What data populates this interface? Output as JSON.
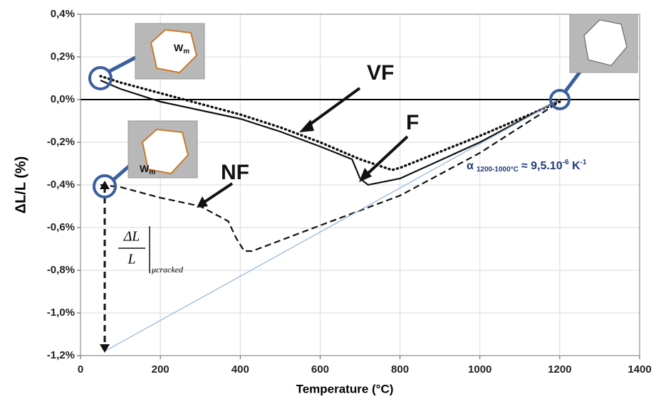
{
  "chart_data": {
    "type": "line",
    "x_label": "Temperature (°C)",
    "y_label": "ΔL/L (%)",
    "xlim": [
      0,
      1400
    ],
    "xticks": [
      0,
      200,
      400,
      600,
      800,
      1000,
      1200,
      1400
    ],
    "ylim": [
      -1.2,
      0.4
    ],
    "yticks": [
      {
        "value": -1.2,
        "label": "-1,2%"
      },
      {
        "value": -1.0,
        "label": "-1,0%"
      },
      {
        "value": -0.8,
        "label": "-0,8%"
      },
      {
        "value": -0.6,
        "label": "-0,6%"
      },
      {
        "value": -0.4,
        "label": "-0,4%"
      },
      {
        "value": -0.2,
        "label": "-0,2%"
      },
      {
        "value": 0,
        "label": "0,0%"
      },
      {
        "value": 0.2,
        "label": "0,2%"
      },
      {
        "value": 0.4,
        "label": "0,4%"
      }
    ],
    "grid": true,
    "series": [
      {
        "name": "VF",
        "color": "#111111",
        "style": "dotted",
        "x": [
          50,
          100,
          200,
          300,
          400,
          500,
          600,
          700,
          780,
          800,
          1000,
          1200
        ],
        "values": [
          0.11,
          0.08,
          0.03,
          -0.02,
          -0.07,
          -0.13,
          -0.2,
          -0.28,
          -0.33,
          -0.32,
          -0.17,
          -0.01
        ]
      },
      {
        "name": "F",
        "color": "#111111",
        "style": "solid",
        "x": [
          50,
          100,
          200,
          300,
          400,
          500,
          600,
          680,
          700,
          720,
          800,
          1000,
          1200
        ],
        "values": [
          0.09,
          0.05,
          -0.01,
          -0.05,
          -0.09,
          -0.15,
          -0.22,
          -0.28,
          -0.37,
          -0.4,
          -0.37,
          -0.2,
          0.0
        ]
      },
      {
        "name": "NF",
        "color": "#111111",
        "style": "dashed",
        "x": [
          50,
          100,
          200,
          300,
          370,
          390,
          410,
          430,
          600,
          800,
          1000,
          1200
        ],
        "values": [
          -0.4,
          -0.41,
          -0.46,
          -0.5,
          -0.57,
          -0.65,
          -0.71,
          -0.71,
          -0.59,
          -0.45,
          -0.25,
          -0.01
        ]
      },
      {
        "color": "#8fb3e0",
        "style": "thin",
        "x": [
          60,
          1200
        ],
        "values": [
          -1.18,
          0.0
        ]
      }
    ],
    "annotations": {
      "alpha": {
        "symbol": "α",
        "range": "1200-1000°C",
        "value": "≈ 9,5.10",
        "exp": "-6",
        "unit": " K",
        "unit_exp": "-1"
      },
      "fraction": {
        "numerator": "ΔL",
        "denominator": "L",
        "subscript": "μcracked"
      },
      "inset_label": {
        "main": "W",
        "sub": "m"
      }
    }
  }
}
